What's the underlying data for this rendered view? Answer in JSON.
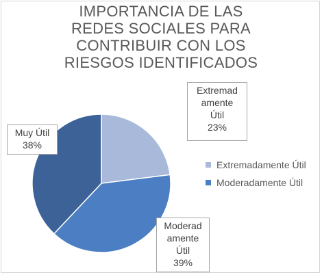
{
  "chart_data": {
    "type": "pie",
    "title_lines": [
      "IMPORTANCIA DE LAS",
      "REDES SOCIALES PARA",
      "CONTRIBUIR CON LOS",
      "RIESGOS IDENTIFICADOS"
    ],
    "slices": [
      {
        "category": "Extremadamente Útil",
        "value": 23,
        "label": "23%",
        "label_lines": [
          "Extremad",
          "amente",
          "Útil",
          "23%"
        ],
        "color": "#a8b9d9"
      },
      {
        "category": "Moderadamente Útil",
        "value": 39,
        "label": "39%",
        "label_lines": [
          "Moderad",
          "amente",
          "Útil",
          "39%"
        ],
        "color": "#4b7ec2"
      },
      {
        "category": "Muy Útil",
        "value": 38,
        "label": "38%",
        "label_lines": [
          "Muy Útil",
          "38%"
        ],
        "color": "#3c6298"
      }
    ],
    "legend": {
      "placement": "right",
      "items": [
        {
          "label": "Extremadamente Útil",
          "color": "#a8b9d9"
        },
        {
          "label": "Moderadamente Útil",
          "color": "#4b7ec2"
        }
      ]
    }
  }
}
